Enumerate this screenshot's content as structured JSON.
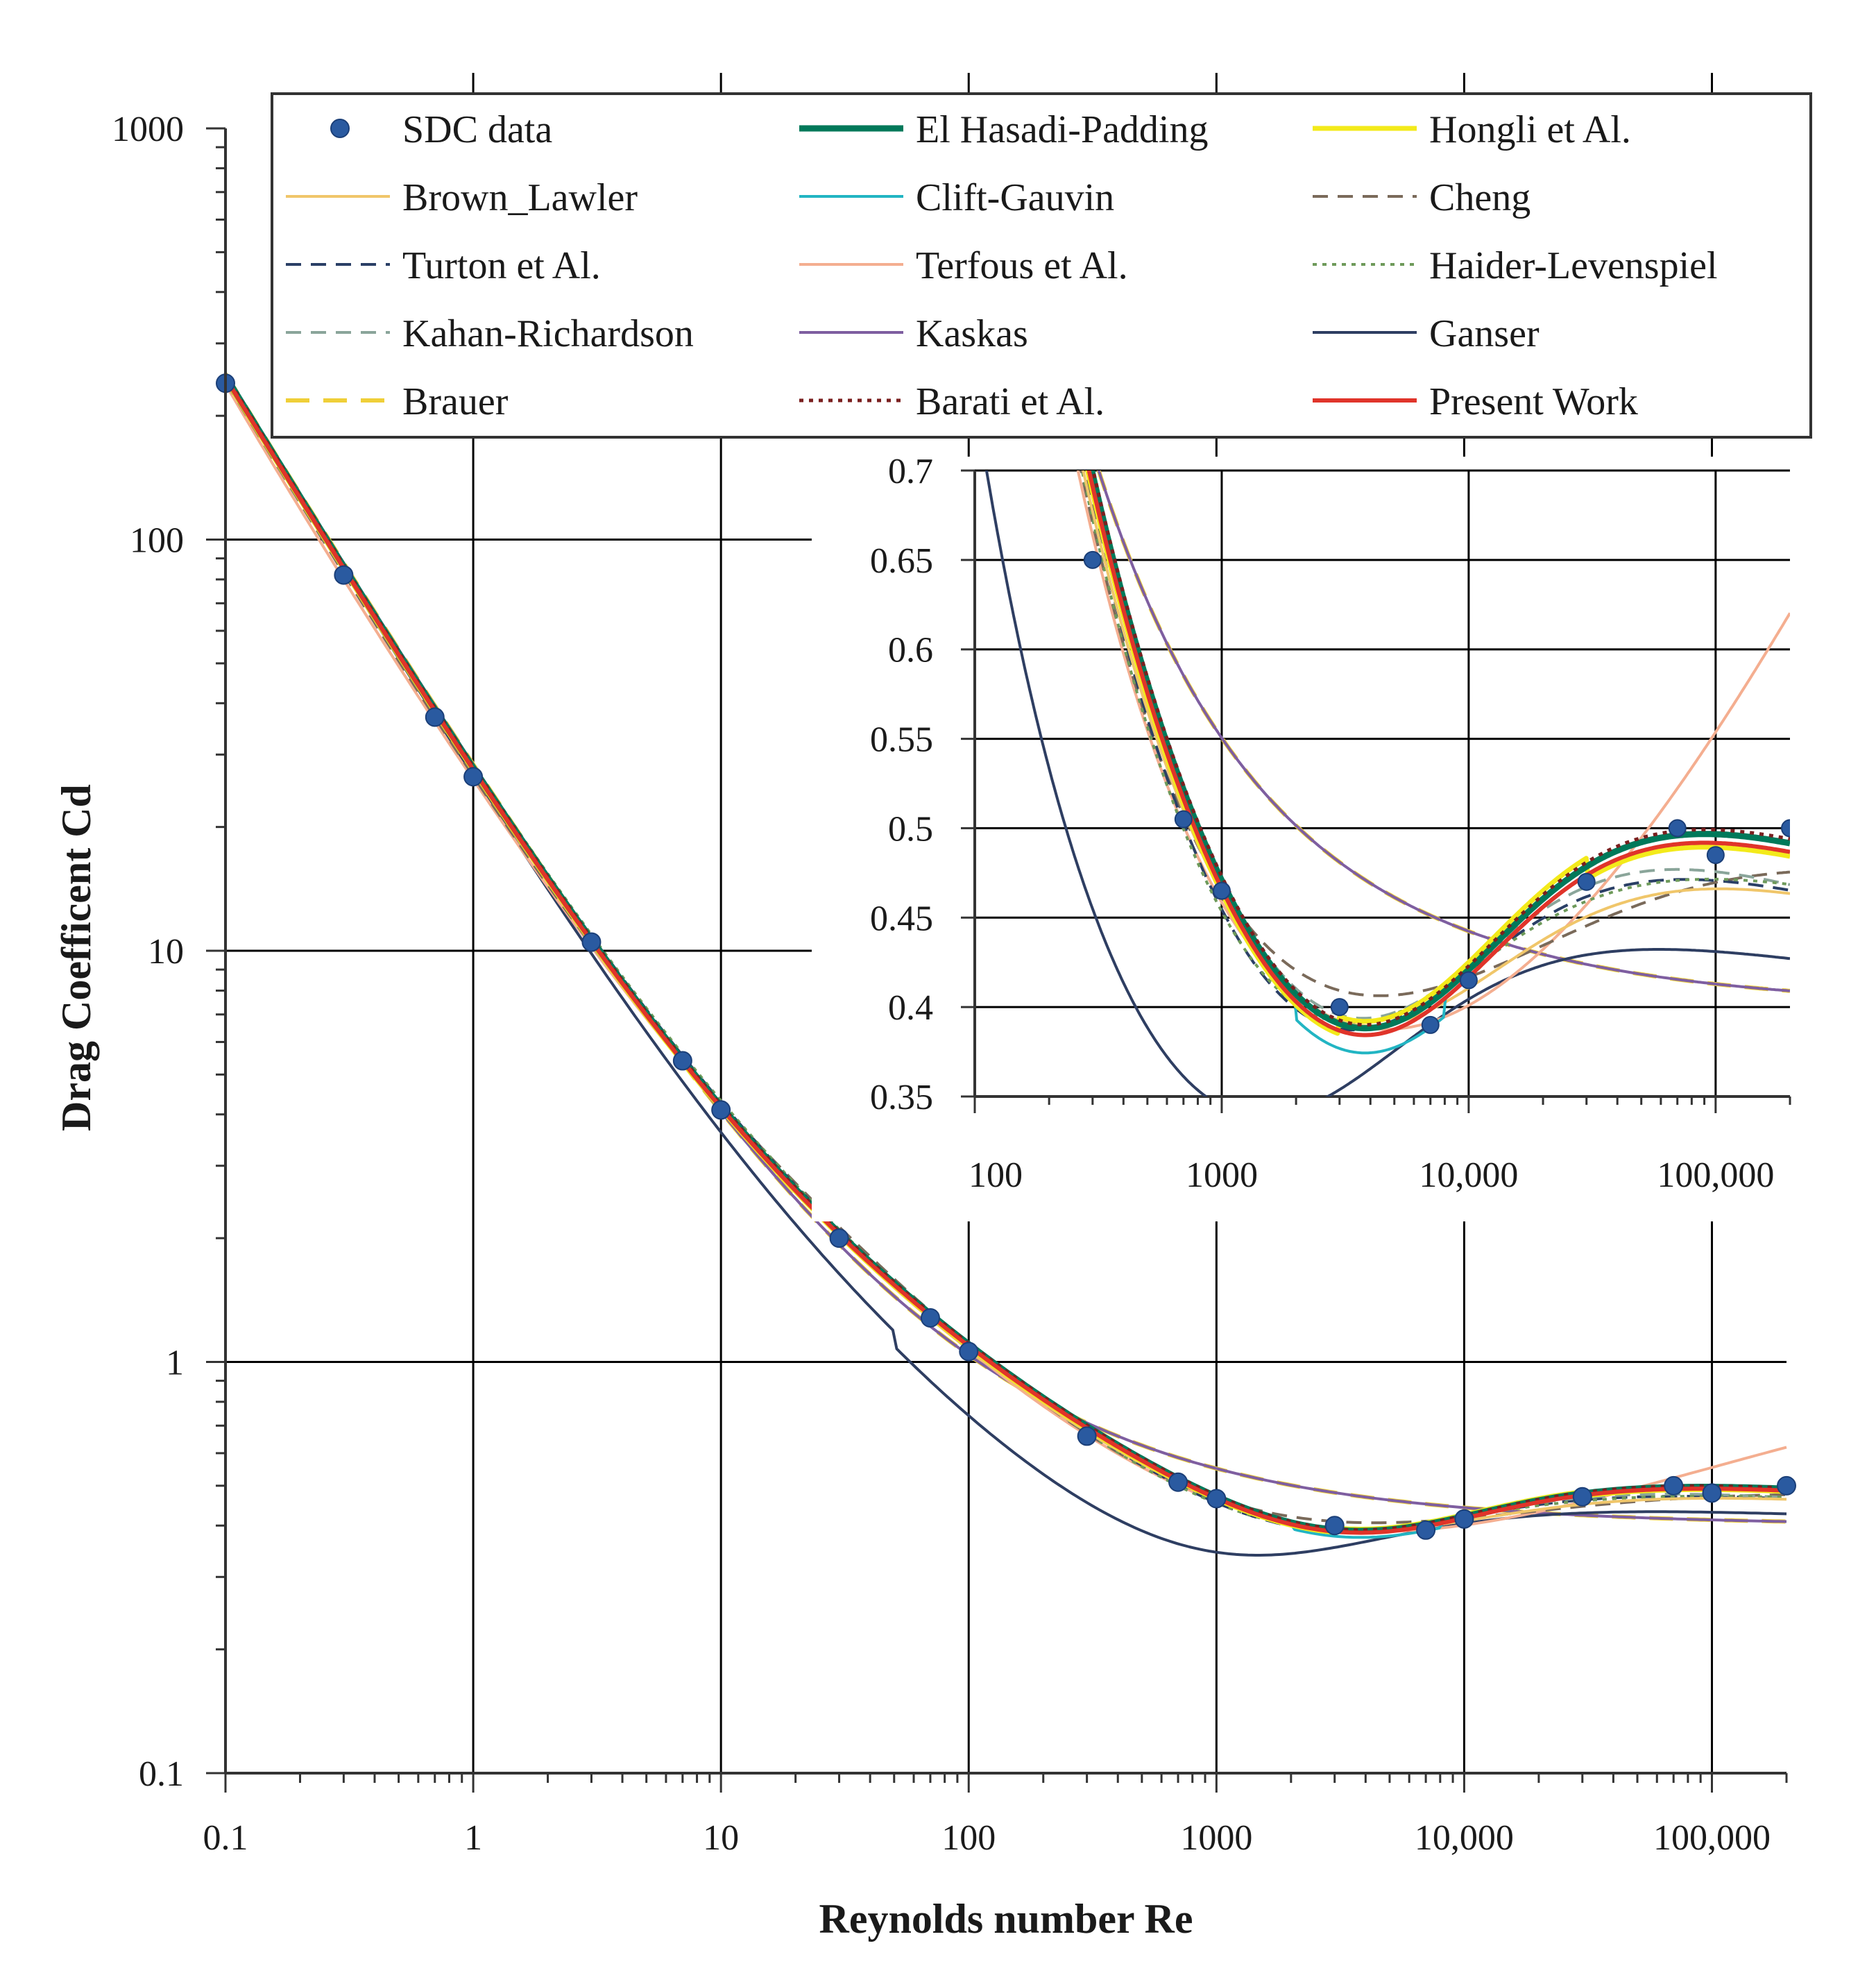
{
  "chart_data": [
    {
      "type": "line",
      "scale": "log-log",
      "xlabel": "Reynolds number Re",
      "ylabel": "Drag Coefficent Cd",
      "xlim": [
        0.1,
        200000
      ],
      "ylim": [
        0.1,
        1000
      ],
      "grid": true,
      "legend_position": "top",
      "x_ticks": [
        {
          "v": 0.1,
          "label": "0.1"
        },
        {
          "v": 1,
          "label": "1"
        },
        {
          "v": 10,
          "label": "10"
        },
        {
          "v": 100,
          "label": "100"
        },
        {
          "v": 1000,
          "label": "1000"
        },
        {
          "v": 10000,
          "label": "10,000"
        },
        {
          "v": 100000,
          "label": "100,000"
        }
      ],
      "y_ticks": [
        {
          "v": 0.1,
          "label": "0.1"
        },
        {
          "v": 1,
          "label": "1"
        },
        {
          "v": 10,
          "label": "10"
        },
        {
          "v": 100,
          "label": "100"
        },
        {
          "v": 1000,
          "label": "1000"
        }
      ],
      "sdc_data": {
        "name": "SDC data",
        "x": [
          0.1,
          0.3,
          0.7,
          1,
          3,
          7,
          10,
          30,
          70,
          100,
          300,
          700,
          1000,
          3000,
          7000,
          10000,
          30000,
          70000,
          100000,
          200000
        ],
        "y": [
          240,
          82,
          37,
          26.5,
          10.5,
          5.4,
          4.1,
          2.0,
          1.28,
          1.06,
          0.66,
          0.51,
          0.465,
          0.4,
          0.39,
          0.415,
          0.47,
          0.5,
          0.48,
          0.5
        ]
      },
      "series": [
        {
          "name": "El Hasadi-Padding",
          "color": "#00795a",
          "dash": "solid",
          "width": 9
        },
        {
          "name": "Hongli et Al.",
          "color": "#f3ea1a",
          "dash": "solid",
          "width": 7
        },
        {
          "name": "Brown_Lawler",
          "color": "#f0c66a",
          "dash": "solid",
          "width": 4
        },
        {
          "name": "Clift-Gauvin",
          "color": "#22b5c3",
          "dash": "solid",
          "width": 4
        },
        {
          "name": "Cheng",
          "color": "#7a6a5a",
          "dash": "dash",
          "width": 4
        },
        {
          "name": "Turton et Al.",
          "color": "#2a3f66",
          "dash": "dash",
          "width": 4
        },
        {
          "name": "Terfous et Al.",
          "color": "#f4ae90",
          "dash": "solid",
          "width": 4
        },
        {
          "name": "Haider-Levenspiel",
          "color": "#6e9a5a",
          "dash": "dot",
          "width": 4
        },
        {
          "name": "Kahan-Richardson",
          "color": "#8aa59a",
          "dash": "dash",
          "width": 4
        },
        {
          "name": "Kaskas",
          "color": "#7e5ea0",
          "dash": "solid",
          "width": 4
        },
        {
          "name": "Ganser",
          "color": "#2e3e62",
          "dash": "solid",
          "width": 4
        },
        {
          "name": "Brauer",
          "color": "#efcf38",
          "dash": "longdash",
          "width": 6
        },
        {
          "name": "Barati et Al.",
          "color": "#7a1f1f",
          "dash": "dot",
          "width": 5
        },
        {
          "name": "Present Work",
          "color": "#e0342a",
          "dash": "solid",
          "width": 6
        }
      ],
      "legend_order": [
        "SDC data",
        "El Hasadi-Padding",
        "Hongli et Al.",
        "Brown_Lawler",
        "Clift-Gauvin",
        "Cheng",
        "Turton et Al.",
        "Terfous et Al.",
        "Haider-Levenspiel",
        "Kahan-Richardson",
        "Kaskas",
        "Ganser",
        "Brauer",
        "Barati et Al.",
        "Present Work"
      ]
    },
    {
      "type": "line",
      "role": "inset",
      "scale": "log-x",
      "xlim": [
        100,
        200000
      ],
      "ylim": [
        0.35,
        0.7
      ],
      "grid": true,
      "x_ticks": [
        {
          "v": 100,
          "label": "100"
        },
        {
          "v": 1000,
          "label": "1000"
        },
        {
          "v": 10000,
          "label": "10,000"
        },
        {
          "v": 100000,
          "label": "100,000"
        }
      ],
      "y_ticks": [
        {
          "v": 0.35,
          "label": "0.35"
        },
        {
          "v": 0.4,
          "label": "0.4"
        },
        {
          "v": 0.45,
          "label": "0.45"
        },
        {
          "v": 0.5,
          "label": "0.5"
        },
        {
          "v": 0.55,
          "label": "0.55"
        },
        {
          "v": 0.6,
          "label": "0.6"
        },
        {
          "v": 0.65,
          "label": "0.65"
        },
        {
          "v": 0.7,
          "label": "0.7"
        }
      ],
      "sdc_data": {
        "name": "SDC data",
        "x": [
          300,
          700,
          1000,
          3000,
          7000,
          10000,
          30000,
          70000,
          100000,
          200000
        ],
        "y": [
          0.65,
          0.505,
          0.465,
          0.4,
          0.39,
          0.415,
          0.47,
          0.5,
          0.485,
          0.5
        ]
      }
    }
  ]
}
